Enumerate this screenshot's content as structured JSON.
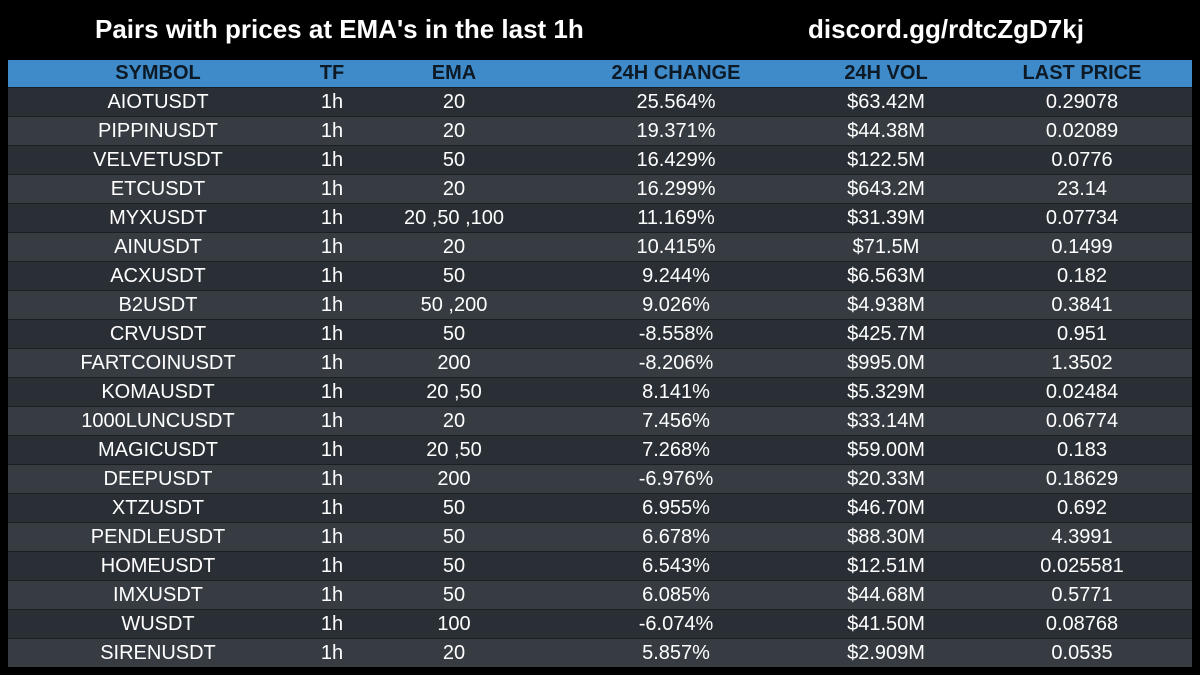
{
  "header": {
    "title": "Pairs with prices at EMA's in the last 1h",
    "link": "discord.gg/rdtcZgD7kj"
  },
  "table": {
    "columns": [
      "SYMBOL",
      "TF",
      "EMA",
      "24H CHANGE",
      "24H VOL",
      "LAST PRICE"
    ],
    "rows": [
      [
        "AIOTUSDT",
        "1h",
        "20",
        "25.564%",
        "$63.42M",
        "0.29078"
      ],
      [
        "PIPPINUSDT",
        "1h",
        "20",
        "19.371%",
        "$44.38M",
        "0.02089"
      ],
      [
        "VELVETUSDT",
        "1h",
        "50",
        "16.429%",
        "$122.5M",
        "0.0776"
      ],
      [
        "ETCUSDT",
        "1h",
        "20",
        "16.299%",
        "$643.2M",
        "23.14"
      ],
      [
        "MYXUSDT",
        "1h",
        "20 ,50 ,100",
        "11.169%",
        "$31.39M",
        "0.07734"
      ],
      [
        "AINUSDT",
        "1h",
        "20",
        "10.415%",
        "$71.5M",
        "0.1499"
      ],
      [
        "ACXUSDT",
        "1h",
        "50",
        "9.244%",
        "$6.563M",
        "0.182"
      ],
      [
        "B2USDT",
        "1h",
        "50 ,200",
        "9.026%",
        "$4.938M",
        "0.3841"
      ],
      [
        "CRVUSDT",
        "1h",
        "50",
        "-8.558%",
        "$425.7M",
        "0.951"
      ],
      [
        "FARTCOINUSDT",
        "1h",
        "200",
        "-8.206%",
        "$995.0M",
        "1.3502"
      ],
      [
        "KOMAUSDT",
        "1h",
        "20 ,50",
        "8.141%",
        "$5.329M",
        "0.02484"
      ],
      [
        "1000LUNCUSDT",
        "1h",
        "20",
        "7.456%",
        "$33.14M",
        "0.06774"
      ],
      [
        "MAGICUSDT",
        "1h",
        "20 ,50",
        "7.268%",
        "$59.00M",
        "0.183"
      ],
      [
        "DEEPUSDT",
        "1h",
        "200",
        "-6.976%",
        "$20.33M",
        "0.18629"
      ],
      [
        "XTZUSDT",
        "1h",
        "50",
        "6.955%",
        "$46.70M",
        "0.692"
      ],
      [
        "PENDLEUSDT",
        "1h",
        "50",
        "6.678%",
        "$88.30M",
        "4.3991"
      ],
      [
        "HOMEUSDT",
        "1h",
        "50",
        "6.543%",
        "$12.51M",
        "0.025581"
      ],
      [
        "IMXUSDT",
        "1h",
        "50",
        "6.085%",
        "$44.68M",
        "0.5771"
      ],
      [
        "WUSDT",
        "1h",
        "100",
        "-6.074%",
        "$41.50M",
        "0.08768"
      ],
      [
        "SIRENUSDT",
        "1h",
        "20",
        "5.857%",
        "$2.909M",
        "0.0535"
      ]
    ]
  },
  "colors": {
    "background": "#000000",
    "header_bar": "#3f8bc9",
    "row_odd": "#2a2f35",
    "row_even": "#363c42",
    "text": "#ffffff"
  }
}
